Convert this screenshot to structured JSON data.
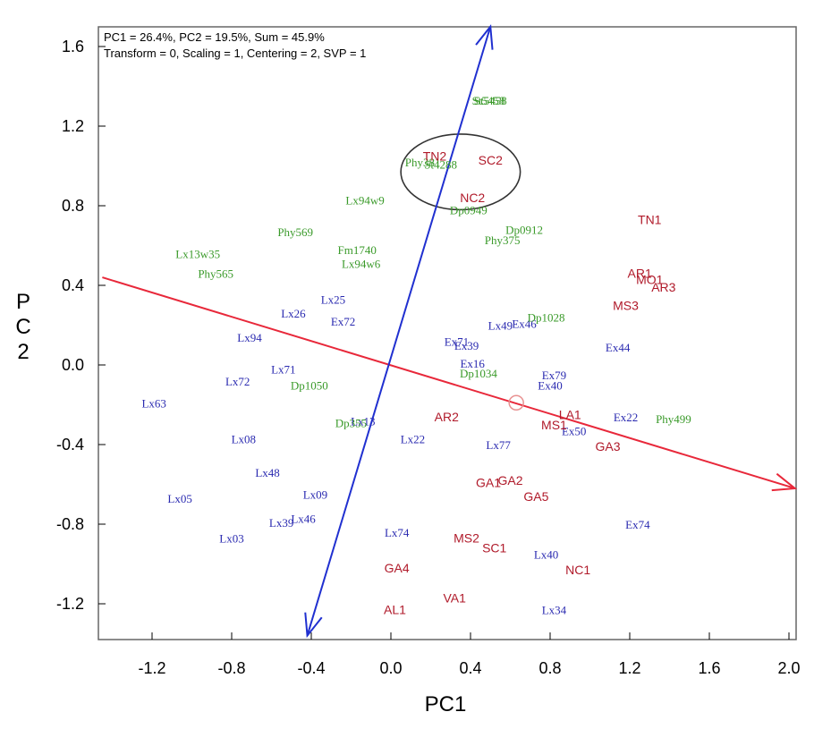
{
  "chart_data": {
    "type": "scatter",
    "title": "",
    "xlabel": "PC1",
    "ylabel": "PC2",
    "xlim": [
      -1.45,
      2.05
    ],
    "ylim": [
      -1.38,
      1.7
    ],
    "xticks": [
      "-1.2",
      "-0.8",
      "-0.4",
      "0.0",
      "0.4",
      "0.8",
      "1.2",
      "1.6",
      "2.0"
    ],
    "yticks": [
      "1.6",
      "1.2",
      "0.8",
      "0.4",
      "0.0",
      "-0.4",
      "-0.8",
      "-1.2"
    ],
    "info_lines": [
      "PC1 = 26.4%, PC2 = 19.5%, Sum = 45.9%",
      "Transform = 0, Scaling = 1, Centering = 2, SVP = 1"
    ],
    "colors": {
      "blue_genotypes": "#2a2ab0",
      "green_genotypes": "#3a9a2a",
      "environments": "#b01a2a",
      "red_axis": "#e8283a",
      "blue_axis": "#2030d0",
      "ellipse": "#333333"
    },
    "blue_axis": {
      "x1": -0.42,
      "y1": -1.36,
      "x2": 0.5,
      "y2": 1.7
    },
    "red_axis": {
      "x1": -1.45,
      "y1": 0.44,
      "x2": 2.03,
      "y2": -0.62
    },
    "marker": {
      "x": 0.63,
      "y": -0.19
    },
    "ellipse": {
      "cx": 0.35,
      "cy": 0.97,
      "rx": 0.3,
      "ry": 0.19
    },
    "series": [
      {
        "group": "blue",
        "points": [
          {
            "label": "Lx63",
            "x": -1.19,
            "y": -0.19
          },
          {
            "label": "Lx05",
            "x": -1.06,
            "y": -0.67
          },
          {
            "label": "Lx03",
            "x": -0.8,
            "y": -0.87
          },
          {
            "label": "Lx08",
            "x": -0.74,
            "y": -0.37
          },
          {
            "label": "Lx48",
            "x": -0.62,
            "y": -0.54
          },
          {
            "label": "Lx39",
            "x": -0.55,
            "y": -0.79
          },
          {
            "label": "Lx46",
            "x": -0.44,
            "y": -0.77
          },
          {
            "label": "Lx09",
            "x": -0.38,
            "y": -0.65
          },
          {
            "label": "Lx72",
            "x": -0.77,
            "y": -0.08
          },
          {
            "label": "Lx71",
            "x": -0.54,
            "y": -0.02
          },
          {
            "label": "Lx94",
            "x": -0.71,
            "y": 0.14
          },
          {
            "label": "Lx26",
            "x": -0.49,
            "y": 0.26
          },
          {
            "label": "Lx25",
            "x": -0.29,
            "y": 0.33
          },
          {
            "label": "Ex72",
            "x": -0.24,
            "y": 0.22
          },
          {
            "label": "Lx13",
            "x": -0.14,
            "y": -0.28
          },
          {
            "label": "Lx22",
            "x": 0.11,
            "y": -0.37
          },
          {
            "label": "Lx74",
            "x": 0.03,
            "y": -0.84
          },
          {
            "label": "Ex71",
            "x": 0.33,
            "y": 0.12
          },
          {
            "label": "Ex39",
            "x": 0.38,
            "y": 0.1
          },
          {
            "label": "Ex16",
            "x": 0.41,
            "y": 0.01
          },
          {
            "label": "Lx49",
            "x": 0.55,
            "y": 0.2
          },
          {
            "label": "Ex46",
            "x": 0.67,
            "y": 0.21
          },
          {
            "label": "Lx77",
            "x": 0.54,
            "y": -0.4
          },
          {
            "label": "Ex79",
            "x": 0.82,
            "y": -0.05
          },
          {
            "label": "Ex40",
            "x": 0.8,
            "y": -0.1
          },
          {
            "label": "Ex50",
            "x": 0.92,
            "y": -0.33
          },
          {
            "label": "Ex44",
            "x": 1.14,
            "y": 0.09
          },
          {
            "label": "Ex22",
            "x": 1.18,
            "y": -0.26
          },
          {
            "label": "Ex74",
            "x": 1.24,
            "y": -0.8
          },
          {
            "label": "Lx40",
            "x": 0.78,
            "y": -0.95
          },
          {
            "label": "Lx34",
            "x": 0.82,
            "y": -1.23
          }
        ]
      },
      {
        "group": "green",
        "points": [
          {
            "label": "St5458",
            "x": 0.49,
            "y": 1.33
          },
          {
            "label": "St5458",
            "x": 0.5,
            "y": 1.33
          },
          {
            "label": "Phy381",
            "x": 0.16,
            "y": 1.02
          },
          {
            "label": "St4288",
            "x": 0.25,
            "y": 1.01
          },
          {
            "label": "Lx94w9",
            "x": -0.13,
            "y": 0.83
          },
          {
            "label": "Dp0949",
            "x": 0.39,
            "y": 0.78
          },
          {
            "label": "Phy569",
            "x": -0.48,
            "y": 0.67
          },
          {
            "label": "Dp0912",
            "x": 0.67,
            "y": 0.68
          },
          {
            "label": "Phy375",
            "x": 0.56,
            "y": 0.63
          },
          {
            "label": "Fm1740",
            "x": -0.17,
            "y": 0.58
          },
          {
            "label": "Lx13w35",
            "x": -0.97,
            "y": 0.56
          },
          {
            "label": "Lx94w6",
            "x": -0.15,
            "y": 0.51
          },
          {
            "label": "Phy565",
            "x": -0.88,
            "y": 0.46
          },
          {
            "label": "Dp1028",
            "x": 0.78,
            "y": 0.24
          },
          {
            "label": "Dp1034",
            "x": 0.44,
            "y": -0.04
          },
          {
            "label": "Dp1050",
            "x": -0.41,
            "y": -0.1
          },
          {
            "label": "Dp355",
            "x": -0.2,
            "y": -0.29
          },
          {
            "label": "Phy499",
            "x": 1.42,
            "y": -0.27
          }
        ]
      },
      {
        "group": "env",
        "points": [
          {
            "label": "TN2",
            "x": 0.22,
            "y": 1.05
          },
          {
            "label": "SC2",
            "x": 0.5,
            "y": 1.03
          },
          {
            "label": "NC2",
            "x": 0.41,
            "y": 0.84
          },
          {
            "label": "TN1",
            "x": 1.3,
            "y": 0.73
          },
          {
            "label": "AR1",
            "x": 1.25,
            "y": 0.46
          },
          {
            "label": "MO1",
            "x": 1.3,
            "y": 0.43
          },
          {
            "label": "AR3",
            "x": 1.37,
            "y": 0.39
          },
          {
            "label": "MS3",
            "x": 1.18,
            "y": 0.3
          },
          {
            "label": "AR2",
            "x": 0.28,
            "y": -0.26
          },
          {
            "label": "LA1",
            "x": 0.9,
            "y": -0.25
          },
          {
            "label": "MS1",
            "x": 0.82,
            "y": -0.3
          },
          {
            "label": "GA3",
            "x": 1.09,
            "y": -0.41
          },
          {
            "label": "GA1",
            "x": 0.49,
            "y": -0.59
          },
          {
            "label": "GA2",
            "x": 0.6,
            "y": -0.58
          },
          {
            "label": "GA5",
            "x": 0.73,
            "y": -0.66
          },
          {
            "label": "MS2",
            "x": 0.38,
            "y": -0.87
          },
          {
            "label": "SC1",
            "x": 0.52,
            "y": -0.92
          },
          {
            "label": "NC1",
            "x": 0.94,
            "y": -1.03
          },
          {
            "label": "GA4",
            "x": 0.03,
            "y": -1.02
          },
          {
            "label": "VA1",
            "x": 0.32,
            "y": -1.17
          },
          {
            "label": "AL1",
            "x": 0.02,
            "y": -1.23
          }
        ]
      }
    ]
  }
}
